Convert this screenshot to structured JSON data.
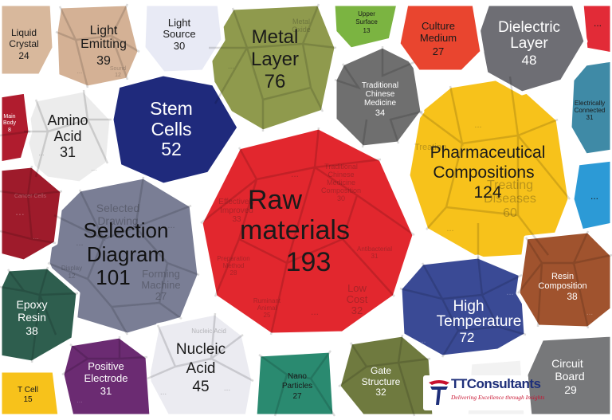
{
  "chart_data": {
    "type": "voronoi-treemap",
    "title": "",
    "cells": [
      {
        "label": "Raw materials",
        "value": 193,
        "color": "#e2272e",
        "text_color": "#1a1a1a",
        "sub": [
          {
            "label": "Traditional Chinese Medicine Composition",
            "value": 30
          },
          {
            "label": "Effectively Improved",
            "value": 33
          },
          {
            "label": "Low Cost",
            "value": 32
          },
          {
            "label": "Antibacterial",
            "value": 31
          },
          {
            "label": "Ruminant Animal",
            "value": 25
          },
          {
            "label": "Preparation Method",
            "value": 28
          }
        ]
      },
      {
        "label": "Pharmaceutical Compositions",
        "value": 124,
        "color": "#f7c21b",
        "text_color": "#1a1a1a",
        "sub": [
          {
            "label": "Treating Diseases",
            "value": 60
          },
          {
            "label": "Treating",
            "value": null
          }
        ]
      },
      {
        "label": "Selection Diagram",
        "value": 101,
        "color": "#7a7e95",
        "text_color": "#111111",
        "sub": [
          {
            "label": "Selected Drawing",
            "value": null
          },
          {
            "label": "Forming Machine",
            "value": 27
          },
          {
            "label": "Display",
            "value": 12
          }
        ]
      },
      {
        "label": "Metal Layer",
        "value": 76,
        "color": "#8f9a4d",
        "text_color": "#1a1a1a",
        "sub": [
          {
            "label": "Metal Oxide",
            "value": null
          }
        ]
      },
      {
        "label": "High Temperature",
        "value": 72,
        "color": "#3a4a95",
        "text_color": "#ffffff",
        "sub": []
      },
      {
        "label": "Stem Cells",
        "value": 52,
        "color": "#1f2a7c",
        "text_color": "#ffffff",
        "sub": []
      },
      {
        "label": "Dielectric Layer",
        "value": 48,
        "color": "#6e6e74",
        "text_color": "#ffffff",
        "sub": []
      },
      {
        "label": "Nucleic Acid",
        "value": 45,
        "color": "#ebebf1",
        "text_color": "#1a1a1a",
        "sub": []
      },
      {
        "label": "Light Emitting",
        "value": 39,
        "color": "#d4b195",
        "text_color": "#1a1a1a",
        "sub": []
      },
      {
        "label": "Resin Composition",
        "value": 38,
        "color": "#a0532e",
        "text_color": "#ffffff",
        "sub": []
      },
      {
        "label": "Epoxy Resin",
        "value": 38,
        "color": "#2e5e4e",
        "text_color": "#ffffff",
        "sub": []
      },
      {
        "label": "Traditional Chinese Medicine",
        "value": 34,
        "color": "#6f6f6f",
        "text_color": "#ffffff",
        "sub": []
      },
      {
        "label": "Gate Structure",
        "value": 32,
        "color": "#6f7a3f",
        "text_color": "#ffffff",
        "sub": []
      },
      {
        "label": "Amino Acid",
        "value": 31,
        "color": "#ececec",
        "text_color": "#1a1a1a",
        "sub": []
      },
      {
        "label": "Positive Electrode",
        "value": 31,
        "color": "#6b2b72",
        "text_color": "#ffffff",
        "sub": []
      },
      {
        "label": "Electrically Connected",
        "value": 31,
        "color": "#3f8aa6",
        "text_color": "#1a1a1a",
        "sub": []
      },
      {
        "label": "Light Source",
        "value": 30,
        "color": "#e8eaf5",
        "text_color": "#1a1a1a",
        "sub": []
      },
      {
        "label": "Circuit Board",
        "value": 29,
        "color": "#77787a",
        "text_color": "#ffffff",
        "sub": []
      },
      {
        "label": "Culture Medium",
        "value": 27,
        "color": "#e9452f",
        "text_color": "#1a1a1a",
        "sub": []
      },
      {
        "label": "Nano Particles",
        "value": 27,
        "color": "#2a8a70",
        "text_color": "#1a1a1a",
        "sub": []
      },
      {
        "label": "Liquid Crystal",
        "value": 24,
        "color": "#d8b89c",
        "text_color": "#1a1a1a",
        "sub": []
      },
      {
        "label": "T Cell",
        "value": 15,
        "color": "#f7c21b",
        "text_color": "#1a1a1a",
        "sub": []
      },
      {
        "label": "Upper Surface",
        "value": 13,
        "color": "#7bb441",
        "text_color": "#1a1a1a",
        "sub": []
      },
      {
        "label": "Main Body",
        "value": 8,
        "color": "#b01c2e",
        "text_color": "#ffffff",
        "sub": []
      },
      {
        "label": "Cancer Cells",
        "value": null,
        "color": "#9e1b2b",
        "text_color": "#ffffff",
        "sub": []
      }
    ],
    "ellipsis": "..."
  },
  "brand": {
    "logo_text": "TTConsultants",
    "tagline": "Delivering Excellence through Insights",
    "colors": {
      "navy": "#1e2f7a",
      "red": "#c8102e"
    }
  }
}
